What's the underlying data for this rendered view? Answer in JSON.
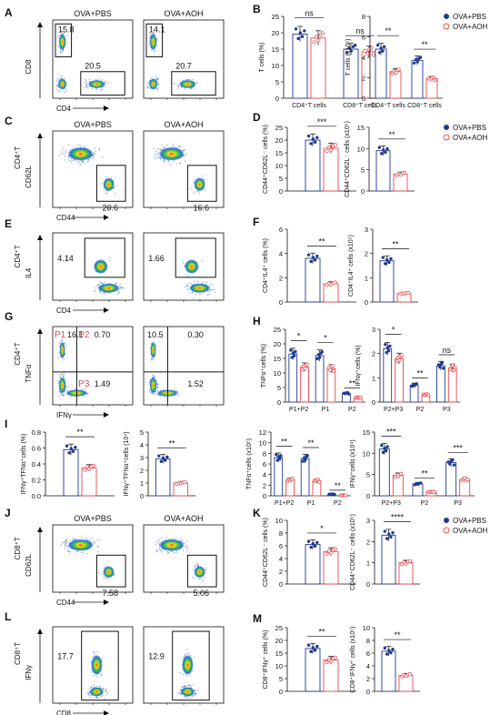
{
  "groups": [
    {
      "name": "OVA+PBS",
      "color": "#1f3a93",
      "fill": "#ffffff"
    },
    {
      "name": "OVA+AOH",
      "color": "#e8484d",
      "fill": "#ffffff"
    }
  ],
  "colors": {
    "pbs": "#1f3a93",
    "aoh": "#e8484d",
    "axis": "#111111",
    "gate": "#111111"
  },
  "flow_panels": [
    {
      "id": "A",
      "left": {
        "title": "OVA+PBS",
        "gates": [
          "15.8",
          "20.5"
        ]
      },
      "right": {
        "title": "OVA+AOH",
        "gates": [
          "14.1",
          "20.7"
        ]
      },
      "ylabel": "CD8",
      "xlabel": "CD4",
      "style": "cd4cd8"
    },
    {
      "id": "C",
      "ylabel_top": "CD4⁺T",
      "left": {
        "title": "OVA+PBS",
        "gates": [
          "20.6"
        ]
      },
      "right": {
        "title": "OVA+AOH",
        "gates": [
          "16.6"
        ]
      },
      "ylabel": "CD62L",
      "xlabel": "CD44",
      "style": "cd44"
    },
    {
      "id": "E",
      "ylabel_top": "CD4⁺T",
      "left": {
        "title": "",
        "gates": [
          "4.14"
        ]
      },
      "right": {
        "title": "",
        "gates": [
          "1.66"
        ]
      },
      "ylabel": "IL4",
      "xlabel": "CD4",
      "style": "il4"
    },
    {
      "id": "G",
      "ylabel_top": "CD4⁺T",
      "left": {
        "title": "",
        "gates": [
          "P1",
          "16.1",
          "P2",
          "0.70",
          "P3",
          "1.49"
        ]
      },
      "right": {
        "title": "",
        "gates": [
          "10.5",
          "0.30",
          "1.52"
        ]
      },
      "ylabel": "TNFα",
      "xlabel": "IFNγ",
      "style": "quad"
    },
    {
      "id": "J",
      "ylabel_top": "CD8⁺T",
      "left": {
        "title": "OVA+PBS",
        "gates": [
          "7.58"
        ]
      },
      "right": {
        "title": "OVA+AOH",
        "gates": [
          "5.06"
        ]
      },
      "ylabel": "CD62L",
      "xlabel": "CD44",
      "style": "cd44"
    },
    {
      "id": "L",
      "ylabel_top": "CD8⁺T",
      "left": {
        "title": "",
        "gates": [
          "17.7"
        ]
      },
      "right": {
        "title": "",
        "gates": [
          "12.9"
        ]
      },
      "ylabel": "IFNγ",
      "xlabel": "CD8",
      "style": "ifng"
    }
  ],
  "chart_data": [
    {
      "panel": "B",
      "type": "bar",
      "ylabel": "T cells (%)",
      "ylim": [
        0,
        25
      ],
      "yticks": [
        0,
        5,
        10,
        15,
        20,
        25
      ],
      "categories": [
        "CD4⁺T cells",
        "CD8⁺T cells"
      ],
      "series": [
        {
          "name": "OVA+PBS",
          "values": [
            19.6,
            15.0
          ]
        },
        {
          "name": "OVA+AOH",
          "values": [
            18.4,
            14.2
          ]
        }
      ],
      "sig": [
        "ns",
        "ns"
      ]
    },
    {
      "panel": "B2",
      "type": "bar",
      "ylabel": "T cells (x10⁶)",
      "ylim": [
        0,
        8
      ],
      "yticks": [
        0,
        2,
        4,
        6,
        8
      ],
      "categories": [
        "CD4⁺T cells",
        "CD8⁺T cells"
      ],
      "series": [
        {
          "name": "OVA+PBS",
          "values": [
            4.8,
            3.7
          ]
        },
        {
          "name": "OVA+AOH",
          "values": [
            2.6,
            1.9
          ]
        }
      ],
      "sig": [
        "**",
        "**"
      ]
    },
    {
      "panel": "D",
      "type": "bar",
      "ylabel": "CD44⁺CD62L⁻ cells (%)",
      "ylim": [
        0,
        25
      ],
      "yticks": [
        0,
        5,
        10,
        15,
        20,
        25
      ],
      "categories": [
        ""
      ],
      "series": [
        {
          "name": "OVA+PBS",
          "values": [
            20.0
          ]
        },
        {
          "name": "OVA+AOH",
          "values": [
            16.8
          ]
        }
      ],
      "sig": [
        "***"
      ]
    },
    {
      "panel": "D2",
      "type": "bar",
      "ylabel": "CD44⁺CD62L⁻ cells (x10⁵)",
      "ylim": [
        0,
        15
      ],
      "yticks": [
        0,
        5,
        10,
        15
      ],
      "categories": [
        ""
      ],
      "series": [
        {
          "name": "OVA+PBS",
          "values": [
            9.5
          ]
        },
        {
          "name": "OVA+AOH",
          "values": [
            4.0
          ]
        }
      ],
      "sig": [
        "**"
      ]
    },
    {
      "panel": "F",
      "type": "bar",
      "ylabel": "CD4⁺IL4⁺ cells (%)",
      "ylim": [
        0,
        6
      ],
      "yticks": [
        0,
        2,
        4,
        6
      ],
      "categories": [
        ""
      ],
      "series": [
        {
          "name": "OVA+PBS",
          "values": [
            3.6
          ]
        },
        {
          "name": "OVA+AOH",
          "values": [
            1.5
          ]
        }
      ],
      "sig": [
        "**"
      ]
    },
    {
      "panel": "F2",
      "type": "bar",
      "ylabel": "CD4⁺IL4⁺ cells (x10⁵)",
      "ylim": [
        0,
        3
      ],
      "yticks": [
        0,
        1,
        2,
        3
      ],
      "categories": [
        ""
      ],
      "series": [
        {
          "name": "OVA+PBS",
          "values": [
            1.7
          ]
        },
        {
          "name": "OVA+AOH",
          "values": [
            0.35
          ]
        }
      ],
      "sig": [
        "**"
      ]
    },
    {
      "panel": "H",
      "type": "bar",
      "ylabel": "TNFα⁺cells (%)",
      "ylim": [
        0,
        25
      ],
      "yticks": [
        0,
        5,
        10,
        15,
        20,
        25
      ],
      "categories": [
        "P1+P2",
        "P1",
        "P2"
      ],
      "series": [
        {
          "name": "OVA+PBS",
          "values": [
            16.5,
            16.0,
            3.0
          ]
        },
        {
          "name": "OVA+AOH",
          "values": [
            12.0,
            11.5,
            1.5
          ]
        }
      ],
      "sig": [
        "*",
        "*",
        "**"
      ]
    },
    {
      "panel": "H2",
      "type": "bar",
      "ylabel": "IFNγ⁺cells (%)",
      "ylim": [
        0,
        3
      ],
      "yticks": [
        0,
        1,
        2,
        3
      ],
      "categories": [
        "P2+P3",
        "P2",
        "P3"
      ],
      "series": [
        {
          "name": "OVA+PBS",
          "values": [
            2.2,
            0.7,
            1.5
          ]
        },
        {
          "name": "OVA+AOH",
          "values": [
            1.8,
            0.3,
            1.4
          ]
        }
      ],
      "sig": [
        "*",
        "**",
        "ns"
      ]
    },
    {
      "panel": "I",
      "type": "bar",
      "ylabel": "IFNγ⁺TFNα⁺cells (%)",
      "ylim": [
        0,
        0.8
      ],
      "yticks": [
        "0.0",
        "0.2",
        "0.4",
        "0.6",
        "0.8"
      ],
      "categories": [
        ""
      ],
      "series": [
        {
          "name": "OVA+PBS",
          "values": [
            0.58
          ]
        },
        {
          "name": "OVA+AOH",
          "values": [
            0.35
          ]
        }
      ],
      "sig": [
        "**"
      ]
    },
    {
      "panel": "I2",
      "type": "bar",
      "ylabel": "IFNγ⁺TFNα⁺cells (10⁴)",
      "ylim": [
        0,
        5
      ],
      "yticks": [
        0,
        1,
        2,
        3,
        4,
        5
      ],
      "categories": [
        ""
      ],
      "series": [
        {
          "name": "OVA+PBS",
          "values": [
            2.9
          ]
        },
        {
          "name": "OVA+AOH",
          "values": [
            1.0
          ]
        }
      ],
      "sig": [
        "**"
      ]
    },
    {
      "panel": "I3",
      "type": "bar",
      "ylabel": "TNFα⁺cells (x10⁵)",
      "ylim": [
        0,
        12
      ],
      "yticks": [
        0,
        2,
        4,
        6,
        8,
        10,
        12
      ],
      "categories": [
        "P1+P2",
        "P1",
        "P2"
      ],
      "series": [
        {
          "name": "OVA+PBS",
          "values": [
            7.2,
            7.0,
            0.3
          ]
        },
        {
          "name": "OVA+AOH",
          "values": [
            3.0,
            2.8,
            0.1
          ]
        }
      ],
      "sig": [
        "**",
        "**",
        "**"
      ]
    },
    {
      "panel": "I4",
      "type": "bar",
      "ylabel": "IFNγ⁺cells (x10⁴)",
      "ylim": [
        0,
        15
      ],
      "yticks": [
        0,
        5,
        10,
        15
      ],
      "categories": [
        "P2+P3",
        "P2",
        "P3"
      ],
      "series": [
        {
          "name": "OVA+PBS",
          "values": [
            11.0,
            2.8,
            7.8
          ]
        },
        {
          "name": "OVA+AOH",
          "values": [
            4.8,
            0.9,
            3.8
          ]
        }
      ],
      "sig": [
        "***",
        "**",
        "***"
      ]
    },
    {
      "panel": "K",
      "type": "bar",
      "ylabel": "CD44⁺CD62L⁻ cells (%)",
      "ylim": [
        0,
        10
      ],
      "yticks": [
        0,
        2,
        4,
        6,
        8,
        10
      ],
      "categories": [
        ""
      ],
      "series": [
        {
          "name": "OVA+PBS",
          "values": [
            6.2
          ]
        },
        {
          "name": "OVA+AOH",
          "values": [
            5.1
          ]
        }
      ],
      "sig": [
        "*"
      ]
    },
    {
      "panel": "K2",
      "type": "bar",
      "ylabel": "CD44⁺CD62L⁻ cells (x10⁵)",
      "ylim": [
        0,
        3
      ],
      "yticks": [
        0,
        1,
        2,
        3
      ],
      "categories": [
        ""
      ],
      "series": [
        {
          "name": "OVA+PBS",
          "values": [
            2.3
          ]
        },
        {
          "name": "OVA+AOH",
          "values": [
            1.0
          ]
        }
      ],
      "sig": [
        "****"
      ]
    },
    {
      "panel": "M",
      "type": "bar",
      "ylabel": "CD8⁺IFNγ⁺ cells (%)",
      "ylim": [
        0,
        25
      ],
      "yticks": [
        0,
        5,
        10,
        15,
        20,
        25
      ],
      "categories": [
        ""
      ],
      "series": [
        {
          "name": "OVA+PBS",
          "values": [
            16.8
          ]
        },
        {
          "name": "OVA+AOH",
          "values": [
            12.3
          ]
        }
      ],
      "sig": [
        "**"
      ]
    },
    {
      "panel": "M2",
      "type": "bar",
      "ylabel": "CD8⁺IFNγ⁺ cells (x10⁵)",
      "ylim": [
        0,
        10
      ],
      "yticks": [
        0,
        2,
        4,
        6,
        8,
        10
      ],
      "categories": [
        ""
      ],
      "series": [
        {
          "name": "OVA+PBS",
          "values": [
            6.3
          ]
        },
        {
          "name": "OVA+AOH",
          "values": [
            2.5
          ]
        }
      ],
      "sig": [
        "**"
      ]
    }
  ]
}
